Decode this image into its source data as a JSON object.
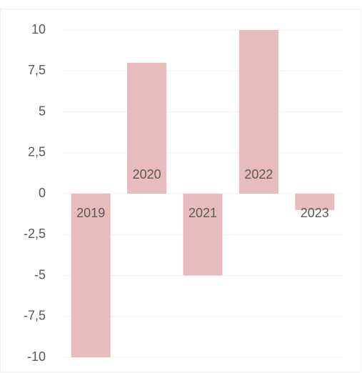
{
  "chart_data": {
    "type": "bar",
    "categories": [
      "2019",
      "2020",
      "2021",
      "2022",
      "2023"
    ],
    "values": [
      -10,
      8,
      -5,
      10,
      -1
    ],
    "color": "#e8bcbc",
    "ylim": [
      -10,
      10
    ],
    "yticks": [
      -10,
      {
        "value": -7.5,
        "label": "-7,5"
      },
      -5,
      {
        "value": -2.5,
        "label": "-2,5"
      },
      0,
      {
        "value": 2.5,
        "label": "2,5"
      },
      5,
      {
        "value": 7.5,
        "label": "7,5"
      },
      10
    ],
    "grid": true
  }
}
